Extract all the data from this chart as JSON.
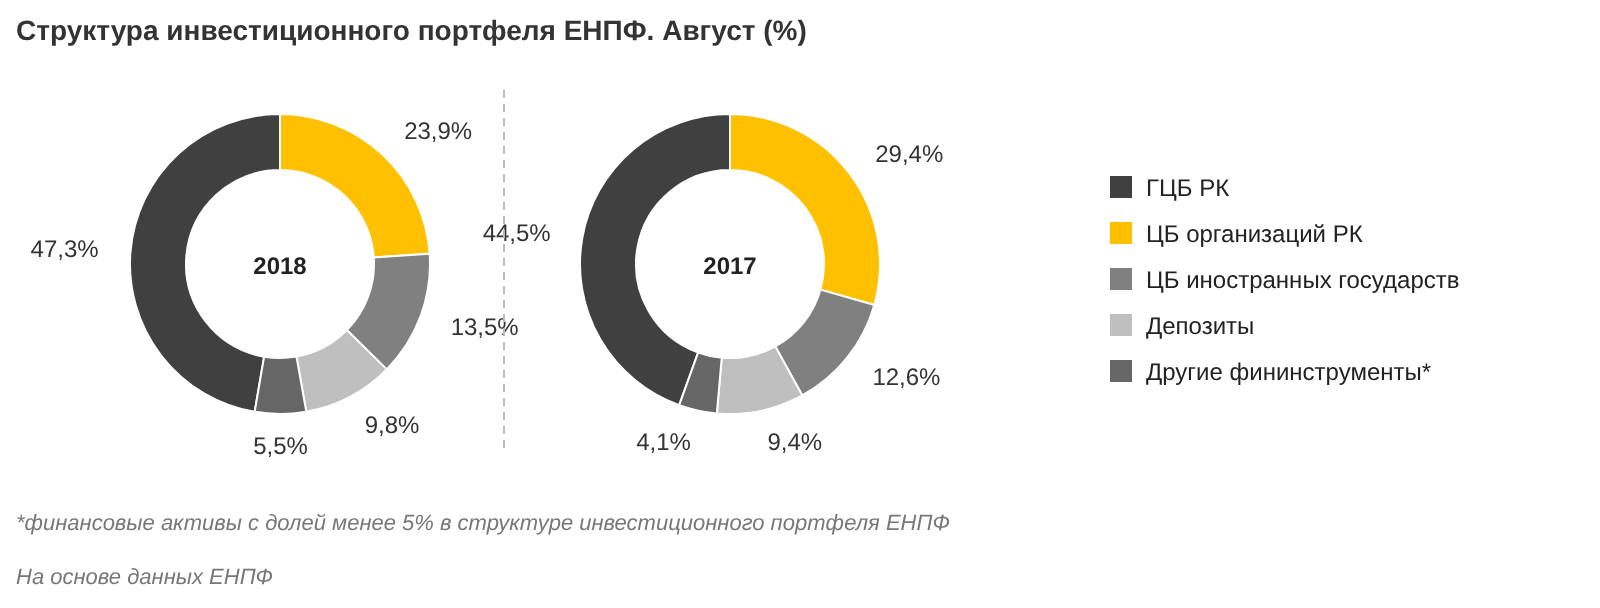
{
  "chart_data": [
    {
      "type": "donut",
      "categories": [
        "ГЦБ РК",
        "ЦБ организаций РК",
        "ЦБ иностранных государств",
        "Депозиты",
        "Другие фининструменты*"
      ],
      "colors": [
        "#404040",
        "#ffc000",
        "#808080",
        "#bfbfbf",
        "#666666"
      ],
      "legend": "right",
      "series": [
        {
          "name": "2018",
          "values": [
            47.3,
            23.9,
            13.5,
            9.8,
            5.5
          ],
          "value_labels": [
            "47,3%",
            "23,9%",
            "13,5%",
            "9,8%",
            "5,5%"
          ]
        },
        {
          "name": "2017",
          "values": [
            44.5,
            29.4,
            12.6,
            9.4,
            4.1
          ],
          "value_labels": [
            "44,5%",
            "29,4%",
            "12,6%",
            "9,4%",
            "4,1%"
          ]
        }
      ]
    },
    {
      "type": "other",
      "title": "Структура инвестиционного портфеля ЕНПФ. Август (%)",
      "annotations": [
        "*финансовые активы с долей менее 5% в структуре инвестиционного портфеля ЕНПФ",
        "На основе данных ЕНПФ"
      ]
    }
  ]
}
